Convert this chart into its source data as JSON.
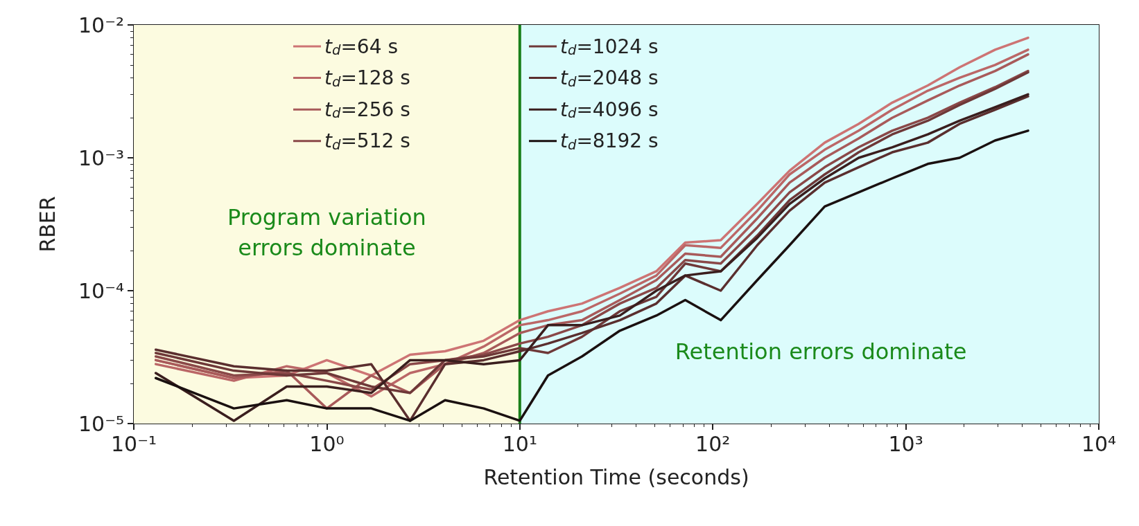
{
  "chart_data": {
    "type": "line",
    "xlabel": "Retention Time (seconds)",
    "ylabel": "RBER",
    "log": "xy",
    "grid": false,
    "legend": "top left",
    "marker": "none",
    "line_style": "solid",
    "xlim": [
      0.1,
      10000
    ],
    "ylim": [
      1e-05,
      0.01
    ],
    "xticks": [
      {
        "value": 0.1,
        "label": "10⁻¹"
      },
      {
        "value": 1,
        "label": "10⁰"
      },
      {
        "value": 10,
        "label": "10¹"
      },
      {
        "value": 100,
        "label": "10²"
      },
      {
        "value": 1000,
        "label": "10³"
      },
      {
        "value": 10000,
        "label": "10⁴"
      }
    ],
    "yticks": [
      {
        "value": 1e-05,
        "label": "10⁻⁵"
      },
      {
        "value": 0.0001,
        "label": "10⁻⁴"
      },
      {
        "value": 0.001,
        "label": "10⁻³"
      },
      {
        "value": 0.01,
        "label": "10⁻²"
      }
    ],
    "x": [
      0.13,
      0.33,
      0.62,
      1.0,
      1.7,
      2.7,
      4.1,
      6.5,
      10,
      14,
      21,
      33,
      51,
      72,
      110,
      170,
      250,
      380,
      570,
      850,
      1300,
      1900,
      2900,
      4300
    ],
    "bands": [
      {
        "axis": "x",
        "from": 0.1,
        "to": 10,
        "label": "Program variation\nerrors dominate",
        "color": "#fcfbe0"
      },
      {
        "axis": "x",
        "from": 10,
        "to": 10000,
        "label": "Retention errors dominate",
        "color": "#dcfcfc"
      }
    ],
    "ref_lines": [
      {
        "axis": "x",
        "value": 10,
        "color": "#1a7f1a"
      }
    ],
    "series": [
      {
        "name": "t$_{d}$=64 s",
        "color": "#cd7474",
        "values": [
          3e-05,
          2.2e-05,
          2.3e-05,
          3e-05,
          2.3e-05,
          3.3e-05,
          3.5e-05,
          4.2e-05,
          6e-05,
          7e-05,
          8e-05,
          0.000105,
          0.00014,
          0.00023,
          0.00024,
          0.00045,
          0.0008,
          0.0013,
          0.0018,
          0.0026,
          0.0035,
          0.0048,
          0.0065,
          0.008
        ]
      },
      {
        "name": "t$_{d}$=128 s",
        "color": "#bb6767",
        "values": [
          2.8e-05,
          2.1e-05,
          2.7e-05,
          2.4e-05,
          1.6e-05,
          2.4e-05,
          2.8e-05,
          3.8e-05,
          5.5e-05,
          6e-05,
          7e-05,
          9.5e-05,
          0.00013,
          0.00022,
          0.00021,
          0.0004,
          0.00075,
          0.00115,
          0.0016,
          0.0023,
          0.0032,
          0.004,
          0.005,
          0.0065
        ]
      },
      {
        "name": "t$_{d}$=256 s",
        "color": "#a85a5a",
        "values": [
          3e-05,
          2.2e-05,
          2.5e-05,
          1.3e-05,
          2.3e-05,
          1.7e-05,
          2.8e-05,
          3.4e-05,
          4.8e-05,
          5.5e-05,
          6e-05,
          8.5e-05,
          0.00012,
          0.00019,
          0.00018,
          0.00035,
          0.00065,
          0.001,
          0.0014,
          0.002,
          0.0027,
          0.0035,
          0.0045,
          0.006
        ]
      },
      {
        "name": "t$_{d}$=512 s",
        "color": "#8a4848",
        "values": [
          3.2e-05,
          2.3e-05,
          2.4e-05,
          2.1e-05,
          1.8e-05,
          2.8e-05,
          3e-05,
          3.3e-05,
          4e-05,
          4.5e-05,
          5.5e-05,
          8e-05,
          0.000105,
          0.00017,
          0.00016,
          0.0003,
          0.00055,
          0.00085,
          0.0012,
          0.0016,
          0.002,
          0.0026,
          0.0034,
          0.0045
        ]
      },
      {
        "name": "t$_{d}$=1024 s",
        "color": "#6e3838",
        "values": [
          3.4e-05,
          2.5e-05,
          2.3e-05,
          2.4e-05,
          1.9e-05,
          1.7e-05,
          3e-05,
          3.2e-05,
          3.7e-05,
          3.4e-05,
          4.5e-05,
          7e-05,
          9e-05,
          0.00016,
          0.00014,
          0.00026,
          0.00048,
          0.00075,
          0.0011,
          0.0015,
          0.0019,
          0.0025,
          0.0033,
          0.0044
        ]
      },
      {
        "name": "t$_{d}$=2048 s",
        "color": "#5a2e2e",
        "values": [
          3.6e-05,
          2.7e-05,
          2.5e-05,
          2.5e-05,
          2.8e-05,
          1.05e-05,
          2.8e-05,
          3e-05,
          3.5e-05,
          4e-05,
          4.8e-05,
          6e-05,
          8e-05,
          0.00013,
          0.0001,
          0.00022,
          0.0004,
          0.00065,
          0.00085,
          0.0011,
          0.0013,
          0.0018,
          0.0023,
          0.0029
        ]
      },
      {
        "name": "t$_{d}$=4096 s",
        "color": "#3a1e1e",
        "values": [
          2.4e-05,
          1.05e-05,
          1.9e-05,
          1.9e-05,
          1.7e-05,
          3e-05,
          3e-05,
          2.8e-05,
          3e-05,
          5.5e-05,
          5.5e-05,
          6.5e-05,
          0.0001,
          0.00013,
          0.00014,
          0.00025,
          0.00045,
          0.0007,
          0.001,
          0.0012,
          0.0015,
          0.0019,
          0.0024,
          0.003
        ]
      },
      {
        "name": "t$_{d}$=8192 s",
        "color": "#1a1010",
        "values": [
          2.2e-05,
          1.3e-05,
          1.5e-05,
          1.3e-05,
          1.3e-05,
          1.05e-05,
          1.5e-05,
          1.3e-05,
          1.05e-05,
          2.3e-05,
          3.2e-05,
          5e-05,
          6.5e-05,
          8.5e-05,
          6e-05,
          0.00012,
          0.00022,
          0.00043,
          0.00055,
          0.0007,
          0.0009,
          0.001,
          0.00135,
          0.0016
        ]
      }
    ]
  }
}
